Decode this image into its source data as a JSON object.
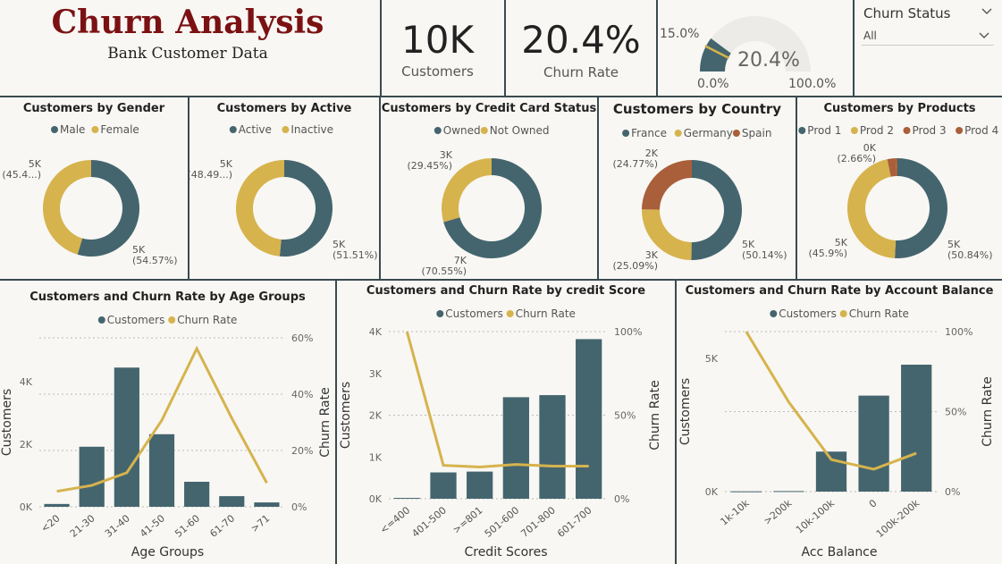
{
  "header": {
    "title": "Churn Analysis",
    "subtitle": "Bank Customer Data"
  },
  "kpis": {
    "customers": {
      "value": "10K",
      "label": "Customers"
    },
    "churn_rate": {
      "value": "20.4%",
      "label": "Churn Rate"
    }
  },
  "gauge": {
    "value": 20.4,
    "value_label": "20.4%",
    "target_label": "15.0%",
    "min_label": "0.0%",
    "max_label": "100.0%"
  },
  "slicer": {
    "label": "Churn Status",
    "value": "All"
  },
  "colors": {
    "teal": "#44656e",
    "gold": "#d6b34d",
    "rust": "#a95f3a",
    "title": "#7b1113"
  },
  "chart_data": [
    {
      "type": "pie",
      "title": "Customers by Gender",
      "legend": [
        "Male",
        "Female"
      ],
      "values": [
        54.57,
        45.43
      ],
      "labels": [
        [
          "5K",
          "(54.57%)"
        ],
        [
          "5K",
          "(45.4...)"
        ]
      ]
    },
    {
      "type": "pie",
      "title": "Customers by Active",
      "legend": [
        "Active",
        "Inactive"
      ],
      "values": [
        51.51,
        48.49
      ],
      "labels": [
        [
          "5K",
          "(51.51%)"
        ],
        [
          "5K",
          "(48.49...)"
        ]
      ]
    },
    {
      "type": "pie",
      "title": "Customers by Credit Card Status",
      "legend": [
        "Owned",
        "Not Owned"
      ],
      "values": [
        70.55,
        29.45
      ],
      "labels": [
        [
          "7K",
          "(70.55%)"
        ],
        [
          "3K",
          "(29.45%)"
        ]
      ]
    },
    {
      "type": "pie",
      "title": "Customers by Country",
      "legend": [
        "France",
        "Germany",
        "Spain"
      ],
      "values": [
        50.14,
        25.09,
        24.77
      ],
      "labels": [
        [
          "5K",
          "(50.14%)"
        ],
        [
          "3K",
          "(25.09%)"
        ],
        [
          "2K",
          "(24.77%)"
        ]
      ]
    },
    {
      "type": "pie",
      "title": "Customers by Products",
      "legend": [
        "Prod 1",
        "Prod 2",
        "Prod 3",
        "Prod 4"
      ],
      "values": [
        50.84,
        45.9,
        2.66,
        0.6
      ],
      "labels": [
        [
          "5K",
          "(50.84%)"
        ],
        [
          "5K",
          "(45.9%)"
        ],
        [
          "0K",
          "(2.66%)"
        ],
        [
          "",
          ""
        ]
      ]
    },
    {
      "type": "bar",
      "title": "Customers and Churn Rate by Age Groups",
      "legend": [
        "Customers",
        "Churn Rate"
      ],
      "categories": [
        "<20",
        "21-30",
        "31-40",
        "41-50",
        "51-60",
        "61-70",
        ">71"
      ],
      "series": [
        {
          "name": "Customers",
          "values": [
            90,
            1920,
            4450,
            2320,
            800,
            340,
            140
          ]
        },
        {
          "name": "Churn Rate",
          "values": [
            5.5,
            7.6,
            12.1,
            30.7,
            56.2,
            31.5,
            8.5
          ]
        }
      ],
      "xlabel": "Age Groups",
      "ylabel": "Customers",
      "y2label": "Churn Rate",
      "ylim": [
        0,
        5400
      ],
      "y2lim": [
        0,
        60
      ],
      "yticks": [
        [
          0,
          "0K"
        ],
        [
          2000,
          "2K"
        ],
        [
          4000,
          "4K"
        ]
      ],
      "y2ticks": [
        [
          0,
          "0%"
        ],
        [
          20,
          "20%"
        ],
        [
          40,
          "40%"
        ],
        [
          60,
          "60%"
        ]
      ]
    },
    {
      "type": "bar",
      "title": "Customers and Churn Rate by credit Score",
      "legend": [
        "Customers",
        "Churn Rate"
      ],
      "categories": [
        "<=400",
        "401-500",
        ">=801",
        "501-600",
        "701-800",
        "601-700"
      ],
      "series": [
        {
          "name": "Customers",
          "values": [
            20,
            630,
            650,
            2430,
            2480,
            3820
          ]
        },
        {
          "name": "Churn Rate",
          "values": [
            100,
            20.0,
            19.0,
            20.5,
            19.5,
            19.5
          ]
        }
      ],
      "xlabel": "Credit Scores",
      "ylabel": "Customers",
      "y2label": "Churn Rate",
      "ylim": [
        0,
        4000
      ],
      "y2lim": [
        0,
        100
      ],
      "yticks": [
        [
          0,
          "0K"
        ],
        [
          1000,
          "1K"
        ],
        [
          2000,
          "2K"
        ],
        [
          3000,
          "3K"
        ],
        [
          4000,
          "4K"
        ]
      ],
      "y2ticks": [
        [
          0,
          "0%"
        ],
        [
          50,
          "50%"
        ],
        [
          100,
          "100%"
        ]
      ]
    },
    {
      "type": "bar",
      "title": "Customers and Churn Rate by Account Balance",
      "legend": [
        "Customers",
        "Churn Rate"
      ],
      "categories": [
        "1k-10k",
        ">200k",
        "10k-100k",
        "0",
        "100k-200k"
      ],
      "series": [
        {
          "name": "Customers",
          "values": [
            10,
            20,
            1500,
            3600,
            4760
          ]
        },
        {
          "name": "Churn Rate",
          "values": [
            100,
            56,
            20,
            14,
            24
          ]
        }
      ],
      "xlabel": "Acc Balance",
      "ylabel": "Customers",
      "y2label": "Churn Rate",
      "ylim": [
        0,
        6000
      ],
      "y2lim": [
        0,
        100
      ],
      "yticks": [
        [
          0,
          "0K"
        ],
        [
          5000,
          "5K"
        ]
      ],
      "y2ticks": [
        [
          0,
          "0%"
        ],
        [
          50,
          "50%"
        ],
        [
          100,
          "100%"
        ]
      ]
    }
  ]
}
